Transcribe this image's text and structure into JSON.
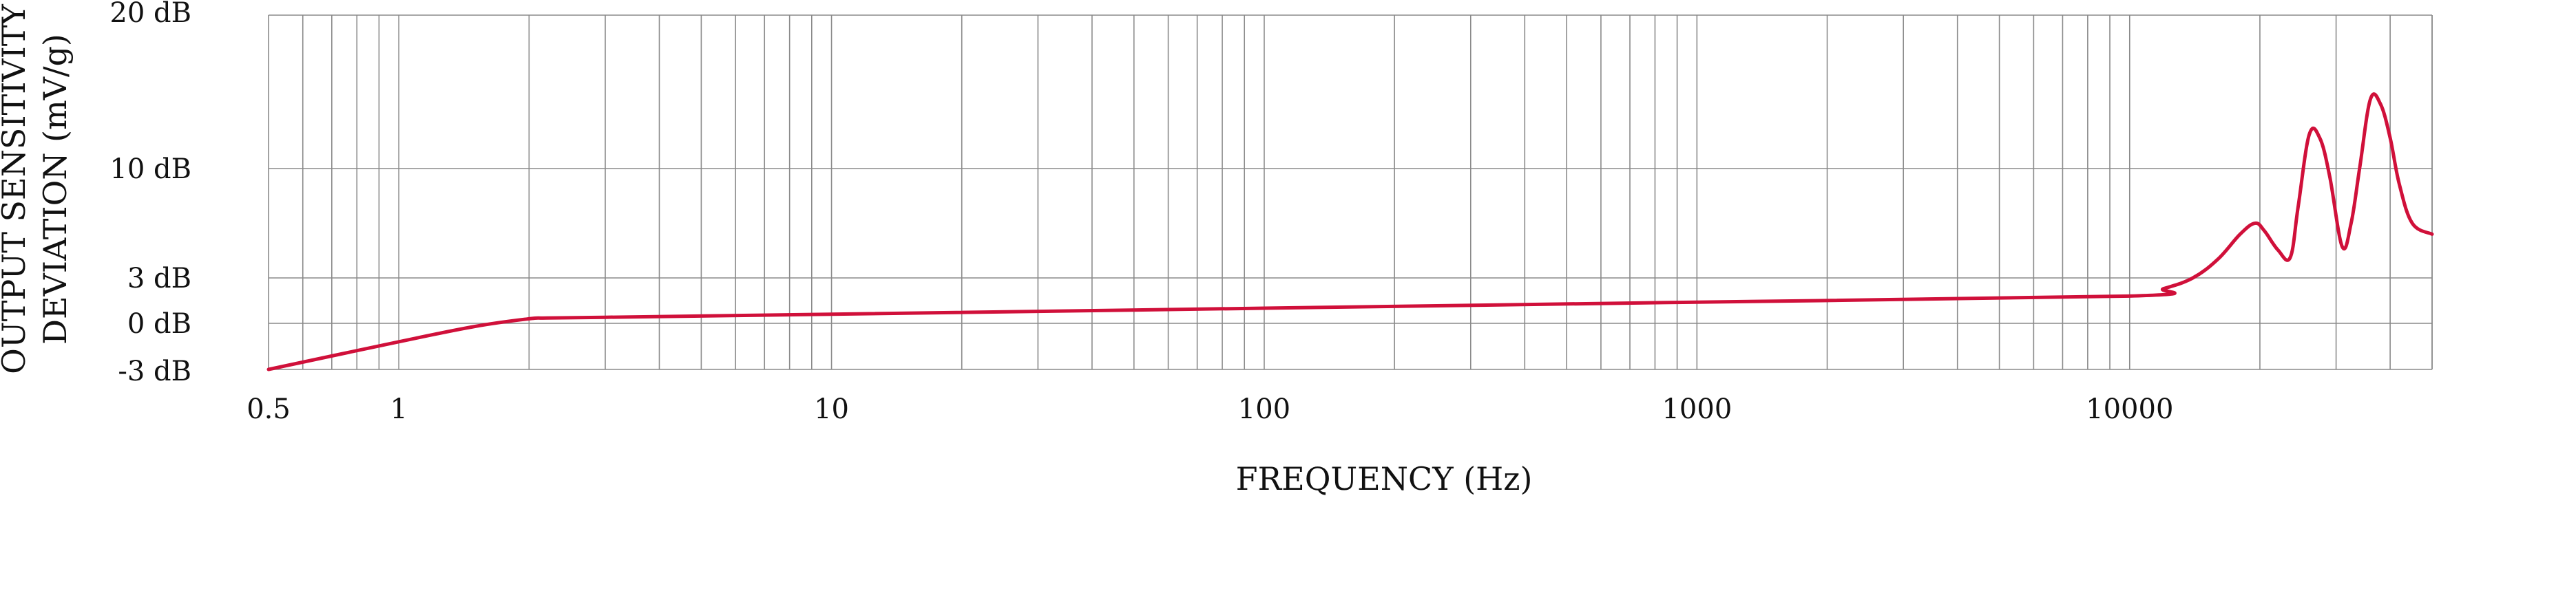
{
  "chart_data": {
    "type": "line",
    "title": "",
    "xlabel": "FREQUENCY (Hz)",
    "ylabel_lines": [
      "OUTPUT SENSITIVITY",
      "DEVIATION (mV/g)"
    ],
    "x_scale": "log",
    "xlim": [
      0.5,
      50000
    ],
    "ylim": [
      -3,
      20
    ],
    "x_ticks": [
      {
        "value": 0.5,
        "label": "0.5"
      },
      {
        "value": 1,
        "label": "1"
      },
      {
        "value": 10,
        "label": "10"
      },
      {
        "value": 100,
        "label": "100"
      },
      {
        "value": 1000,
        "label": "1000"
      },
      {
        "value": 10000,
        "label": "10000"
      }
    ],
    "y_ticks": [
      {
        "value": 20,
        "label": "20 dB"
      },
      {
        "value": 10,
        "label": "10 dB"
      },
      {
        "value": 3,
        "label": "3 dB"
      },
      {
        "value": 0,
        "label": "0 dB"
      },
      {
        "value": -3,
        "label": "-3 dB"
      }
    ],
    "grid": true,
    "colors": {
      "line": "#d0103a",
      "grid": "#8a8a8a",
      "text": "#111111"
    },
    "series": [
      {
        "x": [
          0.5,
          1,
          1.5,
          2,
          2.2,
          3,
          10,
          100,
          1000,
          10000,
          12000,
          14000,
          16000,
          18000,
          19500,
          20500,
          22000,
          23500,
          24500,
          26000,
          27500,
          29000,
          31000,
          32500,
          34000,
          36000,
          38000,
          40000,
          42000,
          45000,
          50000
        ],
        "y": [
          -3,
          -1.2,
          -0.2,
          0.3,
          0.35,
          0.4,
          0.6,
          1.0,
          1.4,
          1.8,
          2.3,
          3.0,
          4.2,
          5.8,
          6.5,
          6.0,
          4.8,
          4.3,
          7.5,
          12.2,
          12.0,
          9.5,
          5.0,
          6.5,
          10.0,
          14.5,
          14.2,
          12.0,
          9.0,
          6.5,
          5.8
        ]
      }
    ]
  }
}
